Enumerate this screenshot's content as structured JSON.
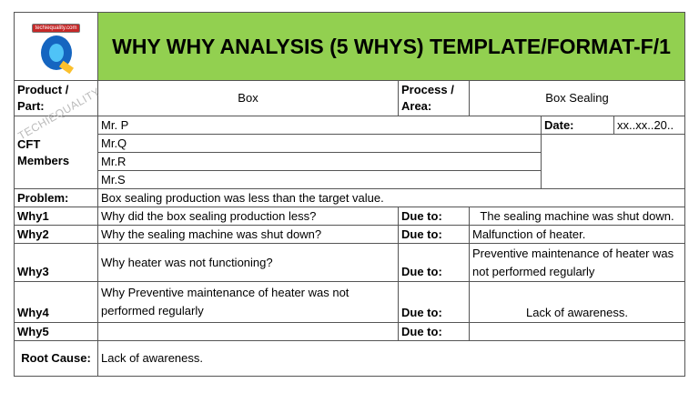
{
  "logo": {
    "text": "techiequality.com"
  },
  "title": "WHY WHY ANALYSIS (5 WHYS) TEMPLATE/FORMAT-F/1",
  "watermark": "TECHIEQUALITY",
  "product": {
    "label": "Product / Part:",
    "value": "Box"
  },
  "process": {
    "label": "Process / Area:",
    "value": "Box Sealing"
  },
  "cft": {
    "label": "CFT Members",
    "members": [
      "Mr. P",
      "Mr.Q",
      "Mr.R",
      "Mr.S"
    ]
  },
  "date": {
    "label": "Date:",
    "value": "xx..xx..20.."
  },
  "problem": {
    "label": "Problem:",
    "value": "Box sealing production was less than the target value."
  },
  "due_label": "Due to:",
  "whys": [
    {
      "label": "Why1",
      "question": "Why did the box sealing production less?",
      "answer": "The sealing machine was shut down."
    },
    {
      "label": "Why2",
      "question": "Why the sealing machine was shut down?",
      "answer": "Malfunction of heater."
    },
    {
      "label": "Why3",
      "question": "Why heater was not functioning?",
      "answer": "Preventive maintenance of heater was not performed regularly"
    },
    {
      "label": "Why4",
      "question": "Why Preventive maintenance of heater was not performed regularly",
      "answer": "Lack of awareness."
    },
    {
      "label": "Why5",
      "question": "",
      "answer": ""
    }
  ],
  "root_cause": {
    "label": "Root Cause:",
    "value": "Lack of awareness."
  }
}
